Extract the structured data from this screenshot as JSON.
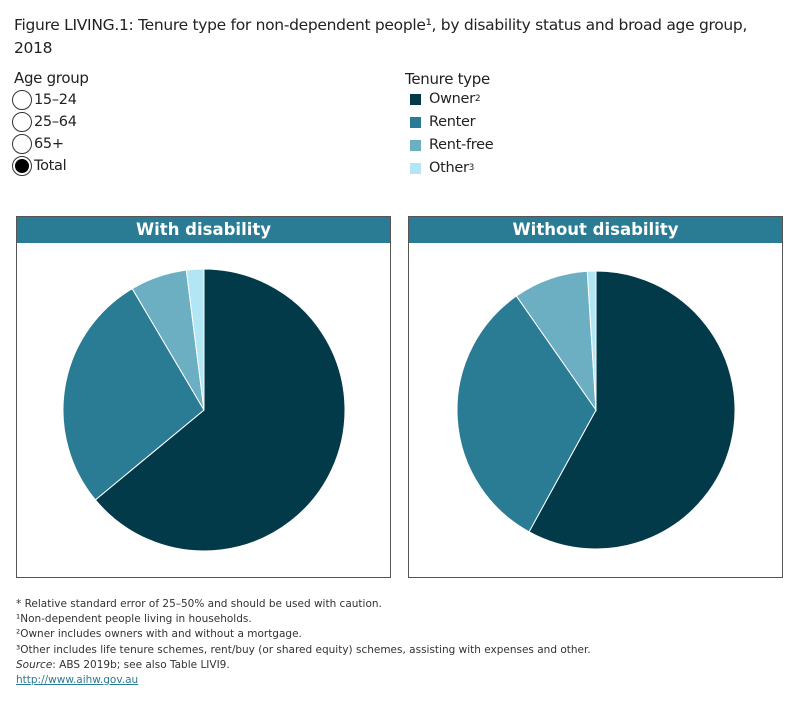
{
  "title": "Figure LIVING.1: Tenure type for non-dependent people¹, by disability status and broad age group, 2018",
  "age_legend": {
    "title": "Age group",
    "options": [
      {
        "label": "15–24",
        "selected": false
      },
      {
        "label": "25–64",
        "selected": false
      },
      {
        "label": "65+",
        "selected": false
      },
      {
        "label": "Total",
        "selected": true
      }
    ]
  },
  "tenure_legend": {
    "title": "Tenure type",
    "items": [
      {
        "label": "Owner",
        "sup": "2",
        "color": "#033a4a"
      },
      {
        "label": "Renter",
        "sup": "",
        "color": "#2a7b94"
      },
      {
        "label": "Rent-free",
        "sup": "",
        "color": "#6cafc2"
      },
      {
        "label": "Other",
        "sup": "3",
        "color": "#b3e6f5"
      }
    ]
  },
  "chart_data": [
    {
      "type": "pie",
      "title": "With disability",
      "categories": [
        "Owner",
        "Renter",
        "Rent-free",
        "Other"
      ],
      "values": [
        64,
        27.5,
        6.5,
        2
      ],
      "unit": "%"
    },
    {
      "type": "pie",
      "title": "Without disability",
      "categories": [
        "Owner",
        "Renter",
        "Rent-free",
        "Other"
      ],
      "values": [
        58,
        32.3,
        8.7,
        1
      ],
      "unit": "%"
    }
  ],
  "footnotes": [
    "* Relative standard error of 25–50% and should be used with caution.",
    "¹Non-dependent people living in households.",
    "²Owner includes owners with and without a mortgage.",
    "³Other includes life tenure schemes, rent/buy (or shared equity) schemes, assisting with expenses and other."
  ],
  "source": {
    "label": "Source",
    "text": ": ABS 2019b; see also Table LIVI9."
  },
  "link": "http://www.aihw.gov.au"
}
